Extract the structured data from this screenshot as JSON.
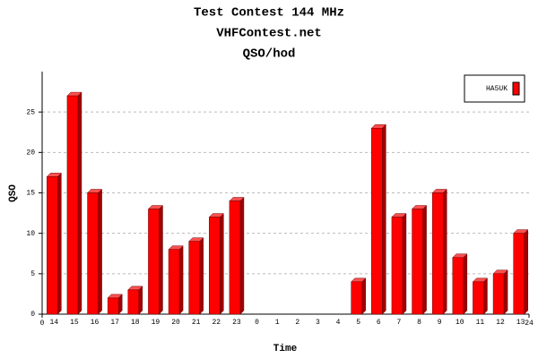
{
  "chart_data": {
    "type": "bar3d",
    "title": "Test Contest 144 MHz",
    "subtitle": [
      "VHFContest.net",
      "QSO/hod"
    ],
    "xlabel": "Time",
    "ylabel": "QSO",
    "categories": [
      "14",
      "15",
      "16",
      "17",
      "18",
      "19",
      "20",
      "21",
      "22",
      "23",
      "0",
      "1",
      "2",
      "3",
      "4",
      "5",
      "6",
      "7",
      "8",
      "9",
      "10",
      "11",
      "12",
      "13"
    ],
    "series": [
      {
        "name": "HA5UK",
        "color": "#ff0000",
        "values": [
          17,
          27,
          15,
          2,
          3,
          13,
          8,
          9,
          12,
          14,
          0,
          0,
          0,
          0,
          0,
          4,
          23,
          12,
          13,
          15,
          7,
          4,
          5,
          10
        ]
      }
    ],
    "xlim": [
      0,
      24
    ],
    "xticks": [
      0,
      24
    ],
    "ylim": [
      0,
      30
    ],
    "yticks": [
      0,
      5,
      10,
      15,
      20,
      25
    ],
    "grid": true,
    "legend": "top-right"
  }
}
